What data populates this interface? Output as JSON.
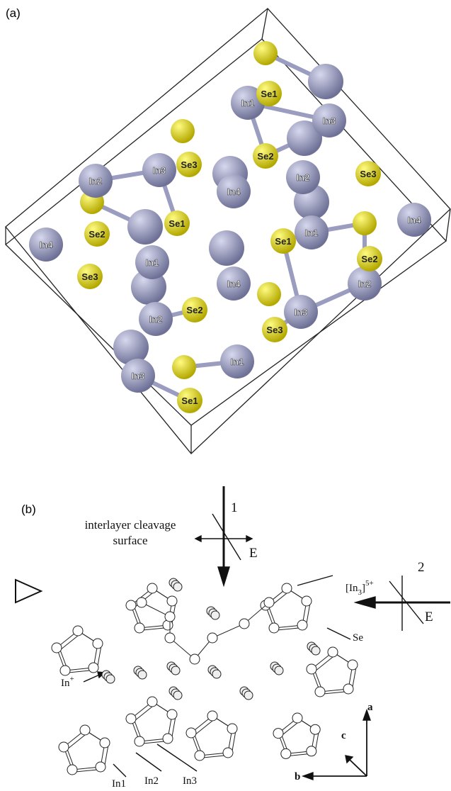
{
  "panel_a": {
    "label": "(a)",
    "in_atoms": [
      "In1",
      "In3",
      "In2",
      "In3",
      "In2",
      "In4",
      "In1",
      "In4",
      "In4",
      "In1",
      "In4",
      "In2",
      "In3",
      "In2",
      "In1",
      "In3"
    ],
    "se_atoms": [
      "Se1",
      "Se2",
      "Se3",
      "Se3",
      "Se2",
      "Se1",
      "Se1",
      "Se2",
      "Se3",
      "Se2",
      "Se3",
      "Se1"
    ]
  },
  "panel_b": {
    "label": "(b)",
    "cleavage": [
      "interlayer cleavage",
      "surface"
    ],
    "direction_1": "1",
    "direction_2": "2",
    "field_1": "E",
    "field_2": "E",
    "cluster_label": {
      "open": "[In",
      "sub": "3",
      "close": "]",
      "sup": "5+"
    },
    "se_label": "Se",
    "ion_label": {
      "base": "In",
      "sup": "+"
    },
    "site_labels": [
      "In1",
      "In2",
      "In3"
    ],
    "axes": [
      "a",
      "c",
      "b"
    ]
  }
}
